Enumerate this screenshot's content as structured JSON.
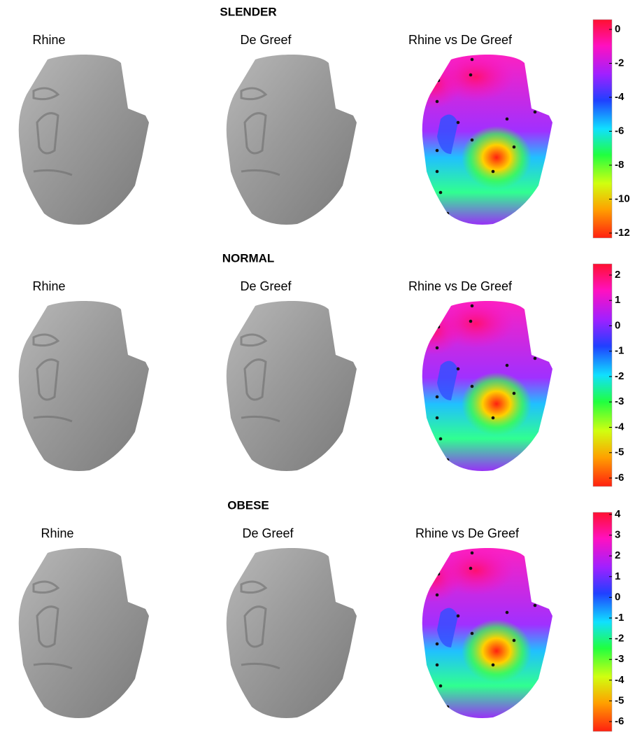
{
  "rows": [
    {
      "title": "SLENDER",
      "labels": [
        "Rhine",
        "De Greef",
        "Rhine vs De Greef"
      ],
      "colorbar_ticks": [
        0,
        -2,
        -4,
        -6,
        -8,
        -10,
        -12
      ]
    },
    {
      "title": "NORMAL",
      "labels": [
        "Rhine",
        "De Greef",
        "Rhine vs De Greef"
      ],
      "colorbar_ticks": [
        2,
        1,
        0,
        -1,
        -2,
        -3,
        -4,
        -5,
        -6
      ]
    },
    {
      "title": "OBESE",
      "labels": [
        "Rhine",
        "De Greef",
        "Rhine vs De Greef"
      ],
      "colorbar_ticks": [
        4,
        3,
        2,
        1,
        0,
        -1,
        -2,
        -3,
        -4,
        -5,
        -6
      ]
    }
  ]
}
